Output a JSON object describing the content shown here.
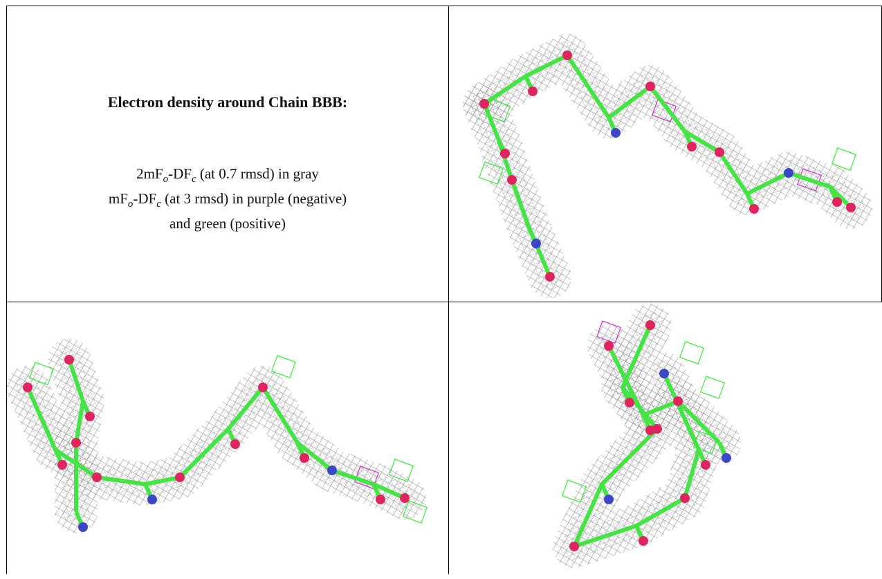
{
  "caption": {
    "title": "Electron density around Chain BBB:",
    "lines": [
      {
        "parts": [
          "2mF",
          "o",
          "-DF",
          "c",
          " (at 0.7 rmsd) in gray"
        ]
      },
      {
        "parts": [
          "mF",
          "o",
          "-DF",
          "c",
          " (at 3 rmsd) in purple (negative)"
        ]
      },
      {
        "parts": [
          "and green (positive)"
        ]
      }
    ]
  }
}
